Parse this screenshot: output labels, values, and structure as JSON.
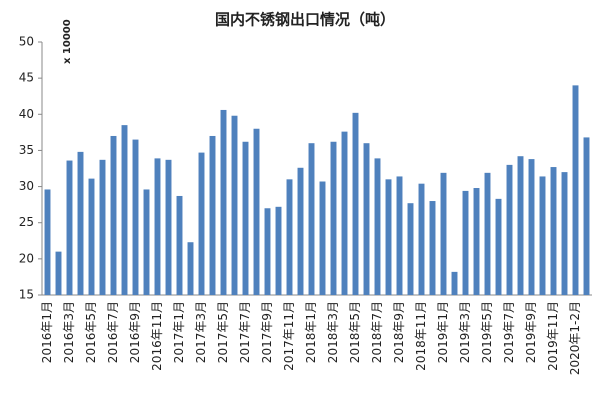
{
  "chart_data": {
    "type": "bar",
    "title": "国内不锈钢出口情况（吨）",
    "unit_note": "x 10000",
    "categories": [
      "2016年1月",
      null,
      "2016年3月",
      null,
      "2016年5月",
      null,
      "2016年7月",
      null,
      "2016年9月",
      null,
      "2016年11月",
      null,
      "2017年1月",
      null,
      "2017年3月",
      null,
      "2017年5月",
      null,
      "2017年7月",
      null,
      "2017年9月",
      null,
      "2017年11月",
      null,
      "2018年1月",
      null,
      "2018年3月",
      null,
      "2018年5月",
      null,
      "2018年7月",
      null,
      "2018年9月",
      null,
      "2018年11月",
      null,
      "2019年1月",
      null,
      "2019年3月",
      null,
      "2019年5月",
      null,
      "2019年7月",
      null,
      "2019年9月",
      null,
      "2019年11月",
      null,
      "2020年1-2月",
      null
    ],
    "values": [
      29.6,
      21,
      33.6,
      34.8,
      31.1,
      33.7,
      37,
      38.5,
      36.5,
      29.6,
      33.9,
      33.7,
      28.7,
      22.3,
      34.7,
      37,
      40.6,
      39.8,
      36.2,
      38,
      27,
      27.2,
      31,
      32.6,
      36,
      30.7,
      36.2,
      37.6,
      40.2,
      36,
      33.9,
      31,
      31.4,
      27.7,
      30.4,
      28,
      31.9,
      18.2,
      29.4,
      29.8,
      31.9,
      28.3,
      33,
      34.2,
      33.8,
      31.4,
      32.7,
      32,
      44,
      36.8
    ],
    "color": "#4f81bd",
    "ylim": [
      15,
      50
    ],
    "yticks": [
      15,
      20,
      25,
      30,
      35,
      40,
      45,
      50
    ],
    "grid": false
  }
}
